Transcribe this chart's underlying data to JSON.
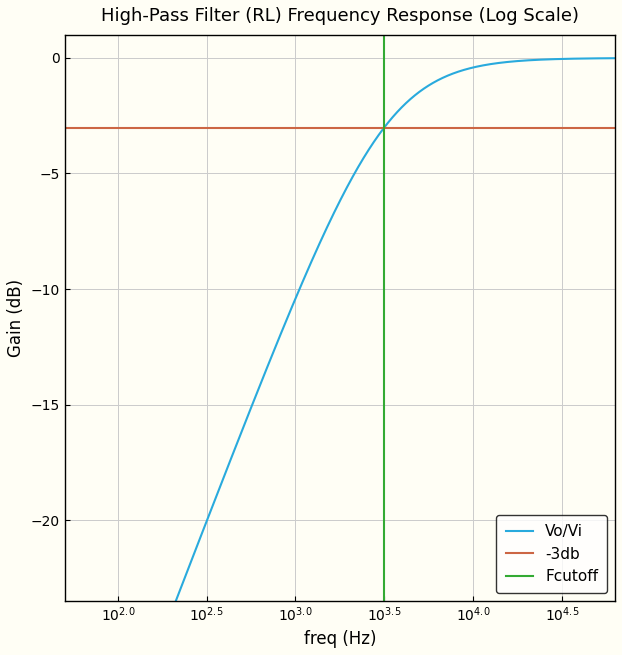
{
  "title": "High-Pass Filter (RL) Frequency Response (Log Scale)",
  "xlabel": "freq (Hz)",
  "ylabel": "Gain (dB)",
  "freq_min_exp": 1.7,
  "freq_max_exp": 4.8,
  "fc": 3162.27766,
  "db_3": -3.0103,
  "ylim_min": -23.5,
  "ylim_max": 1.0,
  "line_color": "#29aadd",
  "line_3db_color": "#cc6644",
  "line_fc_color": "#33aa33",
  "bg_color": "#fffef5",
  "grid_color": "#cccccc",
  "legend_labels": [
    "Vo/Vi",
    "-3db",
    "Fcutoff"
  ],
  "title_fontsize": 13,
  "tick_exponents": [
    2.0,
    2.5,
    3.0,
    3.5,
    4.0,
    4.5
  ],
  "yticks": [
    0,
    -5,
    -10,
    -15,
    -20
  ]
}
